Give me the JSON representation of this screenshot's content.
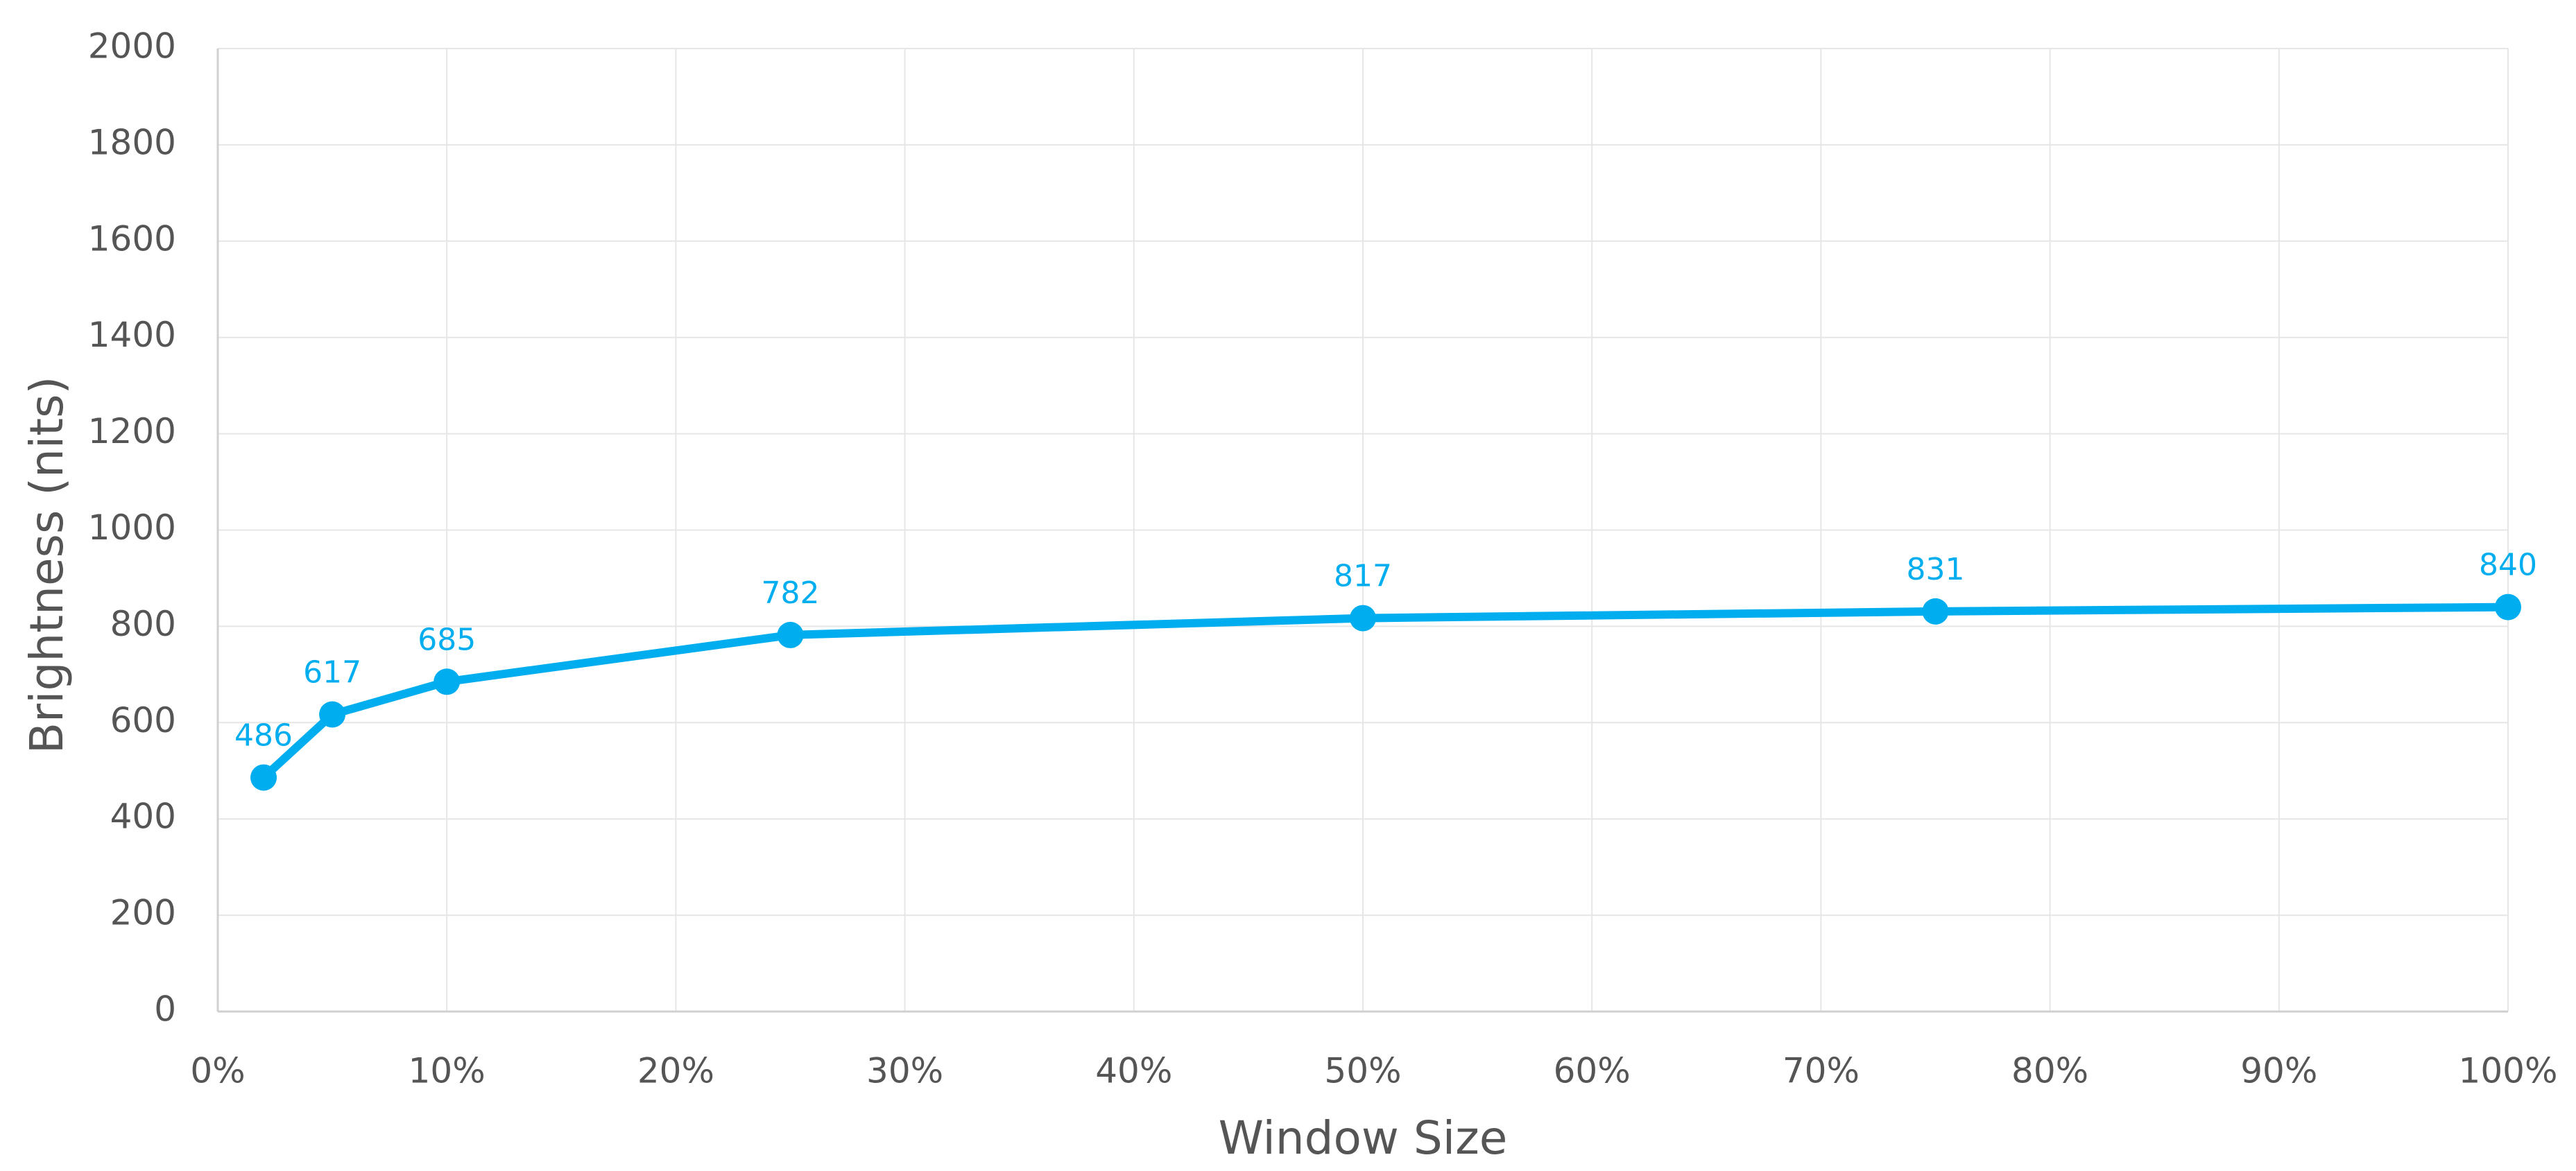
{
  "chart_data": {
    "type": "line",
    "x_label": "Window Size",
    "y_label": "Brightness (nits)",
    "x": [
      2,
      5,
      10,
      25,
      50,
      75,
      100
    ],
    "series": [
      {
        "color": "#00aeef",
        "values": [
          486,
          617,
          685,
          782,
          817,
          831,
          840
        ]
      }
    ],
    "xlim": [
      0,
      100
    ],
    "xticks": [
      {
        "value": 0,
        "label": "0%"
      },
      {
        "value": 10,
        "label": "10%"
      },
      {
        "value": 20,
        "label": "20%"
      },
      {
        "value": 30,
        "label": "30%"
      },
      {
        "value": 40,
        "label": "40%"
      },
      {
        "value": 50,
        "label": "50%"
      },
      {
        "value": 60,
        "label": "60%"
      },
      {
        "value": 70,
        "label": "70%"
      },
      {
        "value": 80,
        "label": "80%"
      },
      {
        "value": 90,
        "label": "90%"
      },
      {
        "value": 100,
        "label": "100%"
      }
    ],
    "ylim": [
      0,
      2000
    ],
    "yticks": [
      0,
      200,
      400,
      600,
      800,
      1000,
      1200,
      1400,
      1600,
      1800,
      2000
    ],
    "grid": true
  }
}
